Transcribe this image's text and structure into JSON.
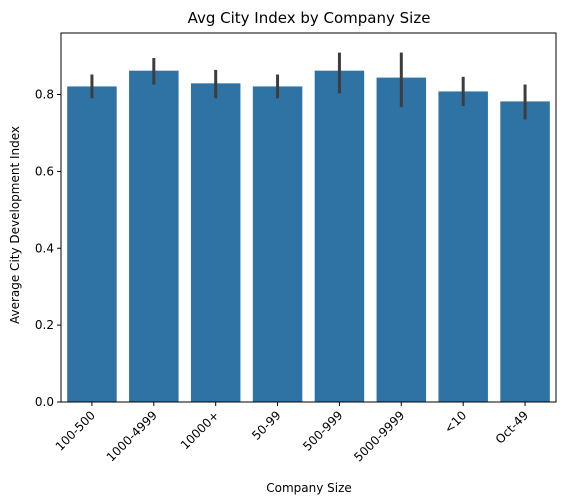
{
  "chart_data": {
    "type": "bar",
    "title": "Avg City Index by Company Size",
    "xlabel": "Company Size",
    "ylabel": "Average City Development Index",
    "categories": [
      "100-500",
      "1000-4999",
      "10000+",
      "50-99",
      "500-999",
      "5000-9999",
      "<10",
      "Oct-49"
    ],
    "values": [
      0.821,
      0.862,
      0.829,
      0.821,
      0.862,
      0.844,
      0.808,
      0.782
    ],
    "error_low": [
      0.79,
      0.826,
      0.79,
      0.79,
      0.803,
      0.767,
      0.77,
      0.735
    ],
    "error_high": [
      0.852,
      0.895,
      0.864,
      0.852,
      0.909,
      0.909,
      0.846,
      0.826
    ],
    "ylim": [
      0,
      0.96
    ],
    "yticks": [
      "0.0",
      "0.2",
      "0.4",
      "0.6",
      "0.8"
    ],
    "ytick_values": [
      0.0,
      0.2,
      0.4,
      0.6,
      0.8
    ],
    "grid": false,
    "colors": {
      "bar": "#2f73a4",
      "errorbar": "#3d3d3d",
      "axis": "#000000"
    }
  }
}
